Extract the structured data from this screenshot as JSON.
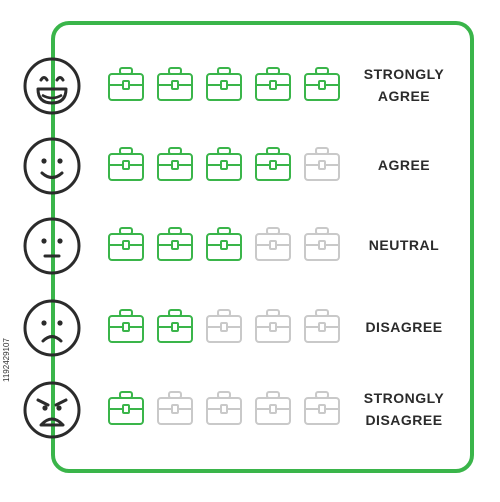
{
  "colors": {
    "frame": "#3ab54a",
    "filled_case": "#3ab54a",
    "empty_case": "#c9c9c9",
    "face": "#2b2b2b"
  },
  "rows": [
    {
      "label_line1": "STRONGLY",
      "label_line2": "AGREE",
      "rating": 5,
      "face_icon": "very-happy-face-icon"
    },
    {
      "label_line1": "AGREE",
      "label_line2": "",
      "rating": 4,
      "face_icon": "smiling-face-icon"
    },
    {
      "label_line1": "NEUTRAL",
      "label_line2": "",
      "rating": 3,
      "face_icon": "neutral-face-icon"
    },
    {
      "label_line1": "DISAGREE",
      "label_line2": "",
      "rating": 2,
      "face_icon": "sad-face-icon"
    },
    {
      "label_line1": "STRONGLY",
      "label_line2": "DISAGREE",
      "rating": 1,
      "face_icon": "angry-face-icon"
    }
  ],
  "max_rating": 5,
  "watermark": "1192429107"
}
